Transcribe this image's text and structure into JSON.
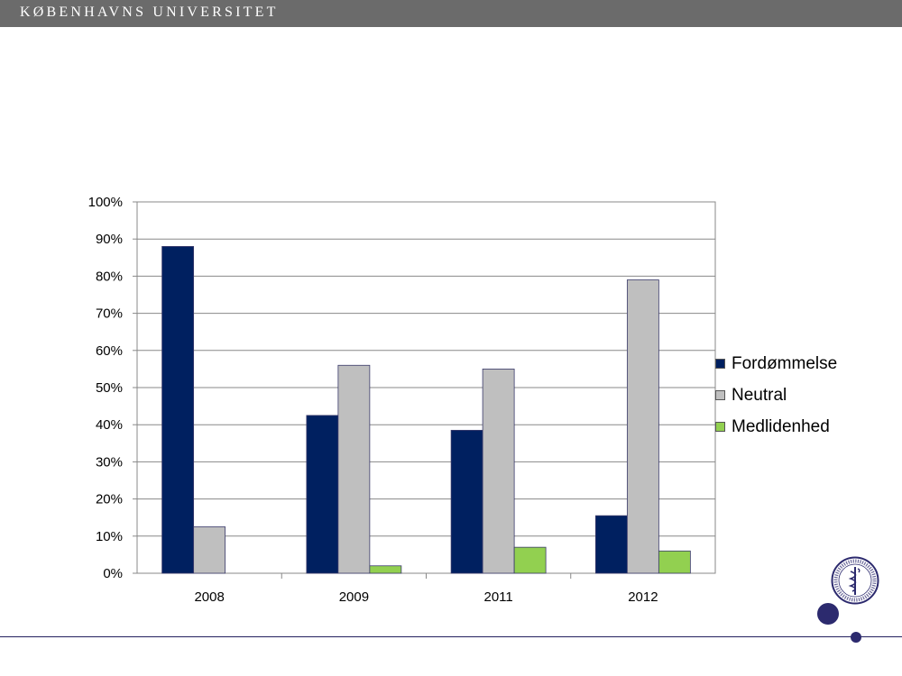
{
  "header": {
    "title": "KØBENHAVNS UNIVERSITET"
  },
  "colors": {
    "header_bg": "#6b6b6b",
    "accent": "#2c2a6e"
  },
  "chart_data": {
    "type": "bar",
    "title": "",
    "xlabel": "",
    "ylabel": "",
    "categories": [
      "2008",
      "2009",
      "2011",
      "2012"
    ],
    "series": [
      {
        "name": "Fordømmelse",
        "color": "#002060",
        "values": [
          88,
          42.5,
          38.5,
          15.5
        ]
      },
      {
        "name": "Neutral",
        "color": "#bfbfbf",
        "values": [
          12.5,
          56,
          55,
          79
        ]
      },
      {
        "name": "Medlidenhed",
        "color": "#92d050",
        "values": [
          0,
          2,
          7,
          6
        ]
      }
    ],
    "ylim": [
      0,
      100
    ],
    "yticks": [
      0,
      10,
      20,
      30,
      40,
      50,
      60,
      70,
      80,
      90,
      100
    ],
    "ytick_labels": [
      "0%",
      "10%",
      "20%",
      "30%",
      "40%",
      "50%",
      "60%",
      "70%",
      "80%",
      "90%",
      "100%"
    ],
    "grid": true,
    "legend": "right"
  }
}
